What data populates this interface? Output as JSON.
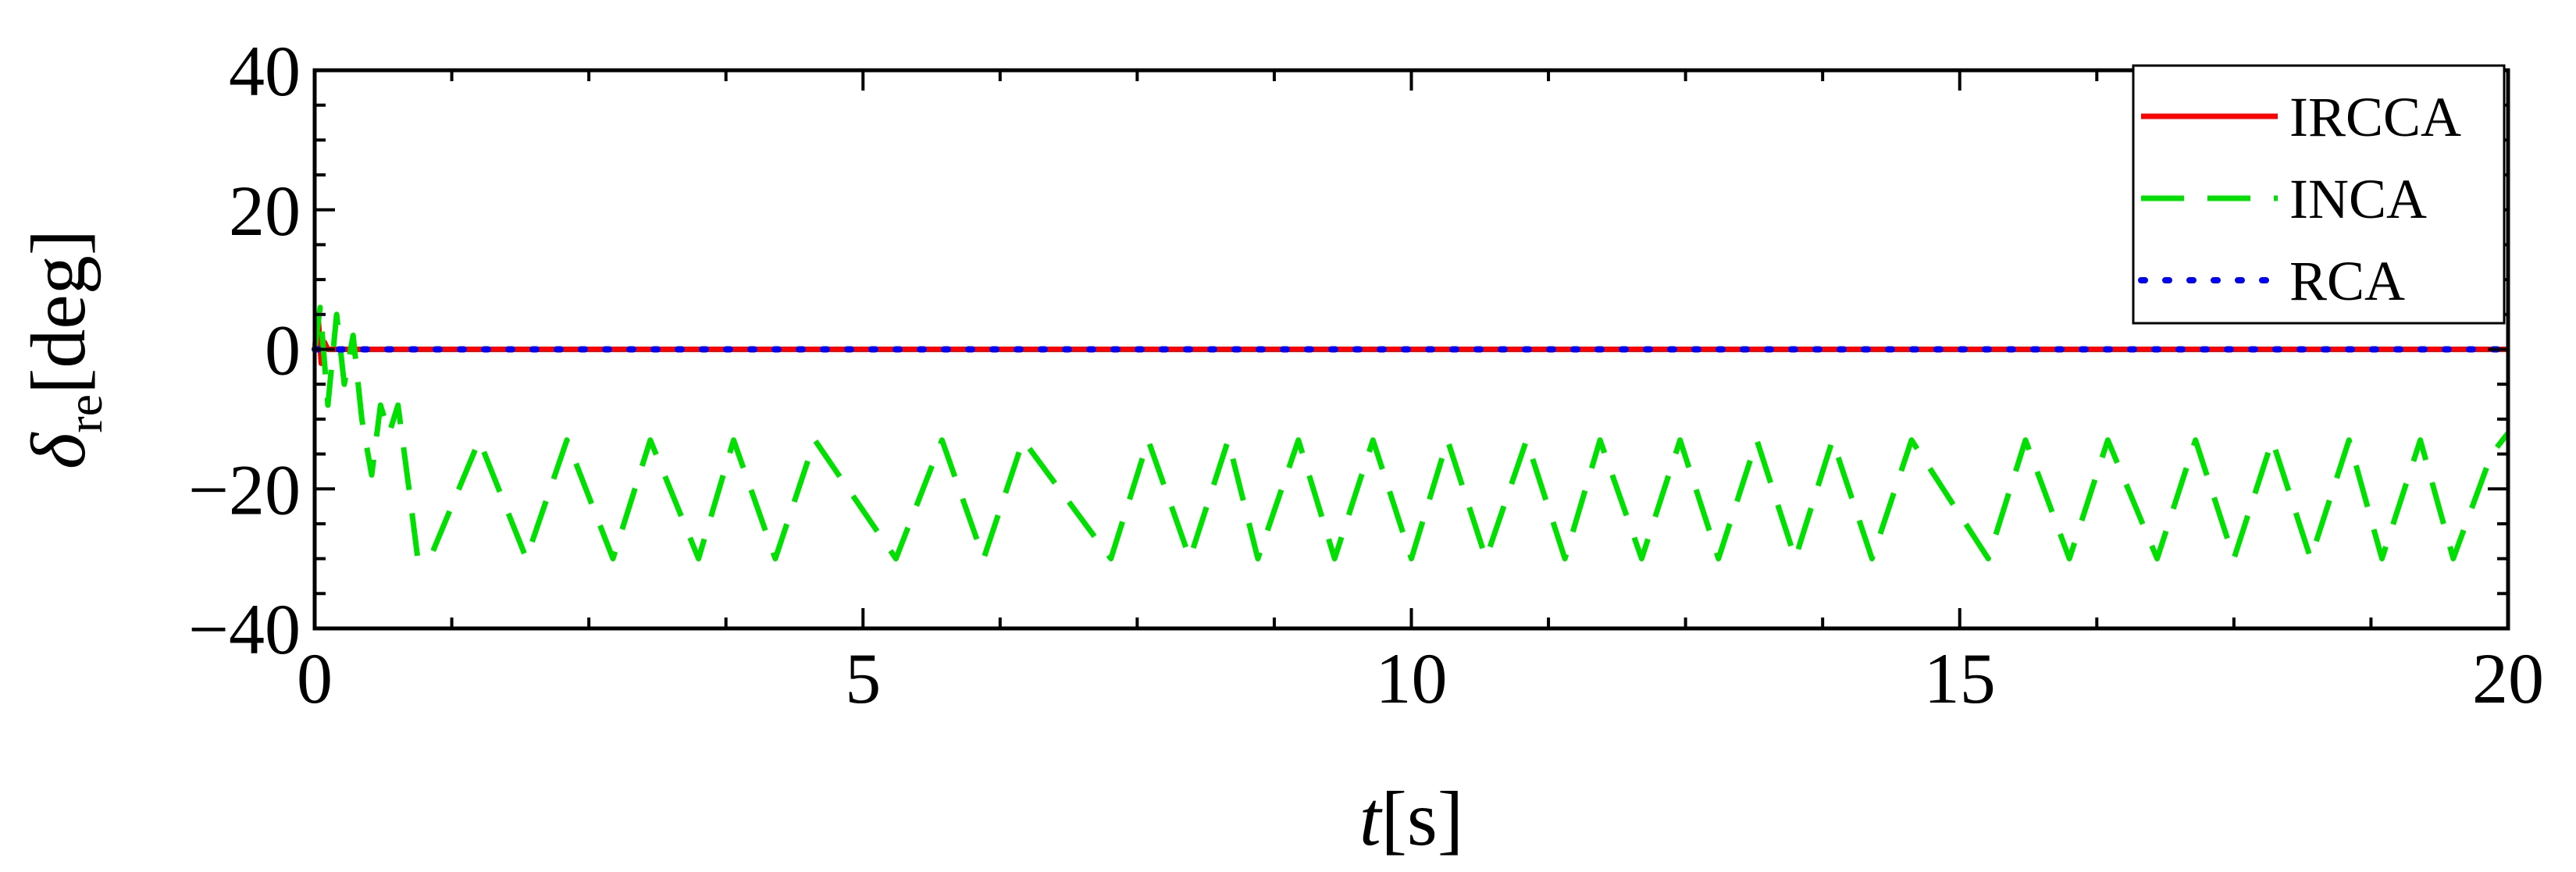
{
  "chart_data": {
    "type": "line",
    "title": "",
    "xlabel": "t[s]",
    "ylabel": "δre[deg]",
    "xlim": [
      0,
      20
    ],
    "ylim": [
      -40,
      40
    ],
    "xticks": [
      0,
      5,
      10,
      15,
      20
    ],
    "yticks": [
      -40,
      -20,
      0,
      20,
      40
    ],
    "xtick_labels": [
      "0",
      "5",
      "10",
      "15",
      "20"
    ],
    "ytick_labels": [
      "−40",
      "−20",
      "0",
      "20",
      "40"
    ],
    "grid": false,
    "legend_position": "top-right",
    "colors": {
      "IRCCA": "#ff0000",
      "INCA": "#00e000",
      "RCA": "#0000ff"
    },
    "series": [
      {
        "name": "IRCCA",
        "style": "solid",
        "x": [
          0,
          0.03,
          0.06,
          0.09,
          0.12,
          0.2,
          20
        ],
        "y": [
          0,
          5,
          -2,
          1,
          0,
          0,
          0
        ]
      },
      {
        "name": "INCA",
        "style": "dashed",
        "x": [
          0,
          0.05,
          0.12,
          0.2,
          0.27,
          0.35,
          0.43,
          0.52,
          0.6,
          0.68,
          0.76,
          0.86,
          0.94,
          1.05,
          1.5,
          1.93,
          2.3,
          2.72,
          3.06,
          3.5,
          3.82,
          4.2,
          4.56,
          5.3,
          5.72,
          6.1,
          6.46,
          7.26,
          7.6,
          7.98,
          8.33,
          8.6,
          8.97,
          9.3,
          9.65,
          10.0,
          10.33,
          10.68,
          11.05,
          11.4,
          11.72,
          12.1,
          12.45,
          12.8,
          13.15,
          13.5,
          13.84,
          14.2,
          14.56,
          15.26,
          15.6,
          16.0,
          16.35,
          16.8,
          17.15,
          17.5,
          17.85,
          18.2,
          18.55,
          18.85,
          19.2,
          19.5,
          19.85,
          20.0
        ],
        "y": [
          0,
          6,
          -8,
          5,
          -5,
          2,
          -10,
          -18,
          -8,
          -12,
          -8,
          -20,
          -30,
          -30,
          -13,
          -30,
          -13,
          -30,
          -13,
          -30,
          -13,
          -30,
          -13,
          -30,
          -13,
          -30,
          -13,
          -30,
          -13,
          -30,
          -13,
          -30,
          -13,
          -30,
          -13,
          -30,
          -13,
          -30,
          -13,
          -30,
          -13,
          -30,
          -13,
          -30,
          -13,
          -30,
          -13,
          -30,
          -13,
          -30,
          -13,
          -30,
          -13,
          -30,
          -13,
          -30,
          -13,
          -30,
          -13,
          -30,
          -13,
          -30,
          -15,
          -12
        ]
      },
      {
        "name": "RCA",
        "style": "dotted",
        "x": [
          0,
          20
        ],
        "y": [
          0,
          0
        ]
      }
    ]
  }
}
